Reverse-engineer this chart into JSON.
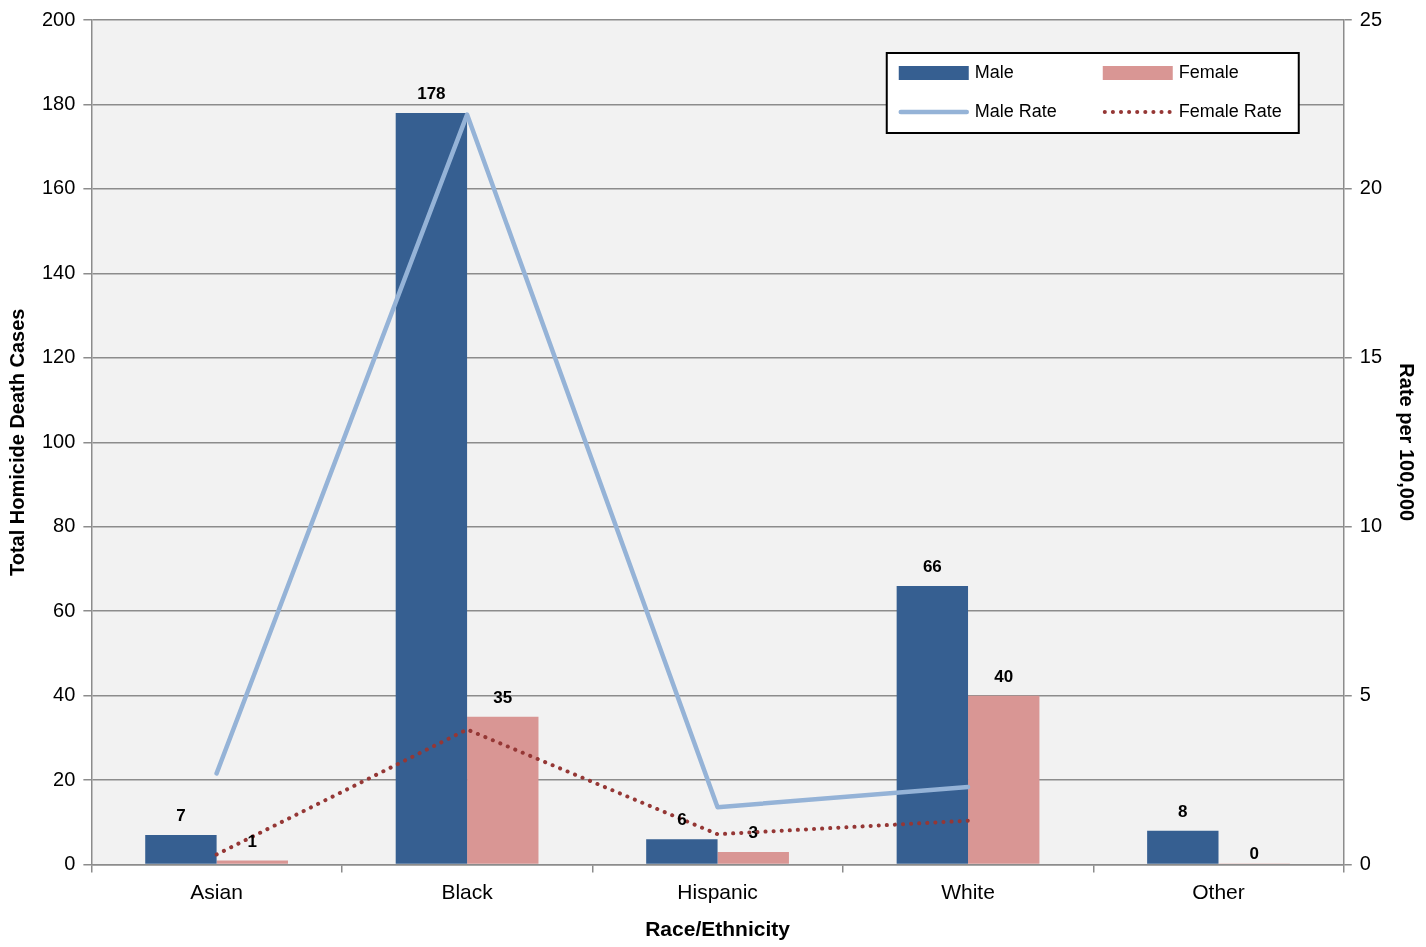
{
  "chart_data": {
    "type": "bar",
    "xlabel": "Race/Ethnicity",
    "ylabel": "Total Homicide Death Cases",
    "y2label": "Rate per 100,000",
    "categories": [
      "Asian",
      "Black",
      "Hispanic",
      "White",
      "Other"
    ],
    "series": [
      {
        "name": "Male",
        "color": "#365f91",
        "values": [
          7,
          178,
          6,
          66,
          8
        ],
        "value_labels": [
          "7",
          "178",
          "6",
          "66",
          "8"
        ]
      },
      {
        "name": "Female",
        "color": "#d99694",
        "values": [
          1,
          35,
          3,
          40,
          0
        ],
        "value_labels": [
          "1",
          "35",
          "3",
          "40",
          "0"
        ]
      },
      {
        "name": "Male Rate",
        "type": "line",
        "axis": "y2",
        "color": "#95b3d7",
        "line_style": "solid",
        "values": [
          2.7,
          22.2,
          1.7,
          2.3,
          null
        ]
      },
      {
        "name": "Female Rate",
        "type": "line",
        "axis": "y2",
        "color": "#953735",
        "line_style": "dotted",
        "values": [
          0.3,
          4.0,
          0.9,
          1.3,
          null
        ]
      }
    ],
    "ylim": [
      0,
      200
    ],
    "yticks": [
      0,
      20,
      40,
      60,
      80,
      100,
      120,
      140,
      160,
      180,
      200
    ],
    "y2lim": [
      0,
      25
    ],
    "y2ticks": [
      0,
      5,
      10,
      15,
      20,
      25
    ],
    "grid": "y",
    "legend": "top right",
    "marker": "none"
  }
}
